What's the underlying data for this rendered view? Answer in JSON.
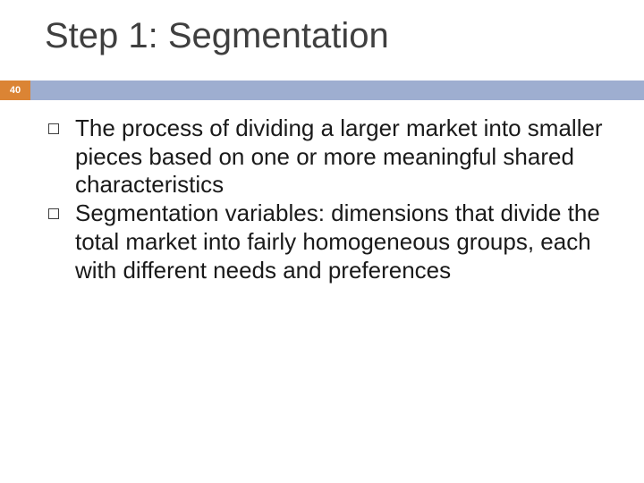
{
  "slide": {
    "title": "Step 1: Segmentation",
    "page_number": "40",
    "accent_colors": {
      "left": "#db8434",
      "right": "#9eaed0"
    },
    "title_color": "#3f3f3f",
    "text_color": "#1a1a1a",
    "background_color": "#ffffff",
    "title_fontsize": 40,
    "body_fontsize": 26,
    "bullets": [
      {
        "text": "The process of dividing a larger market into smaller pieces based on one or more meaningful shared characteristics"
      },
      {
        "text": "Segmentation variables: dimensions that divide the total market into fairly homogeneous groups, each with different needs and preferences"
      }
    ]
  }
}
